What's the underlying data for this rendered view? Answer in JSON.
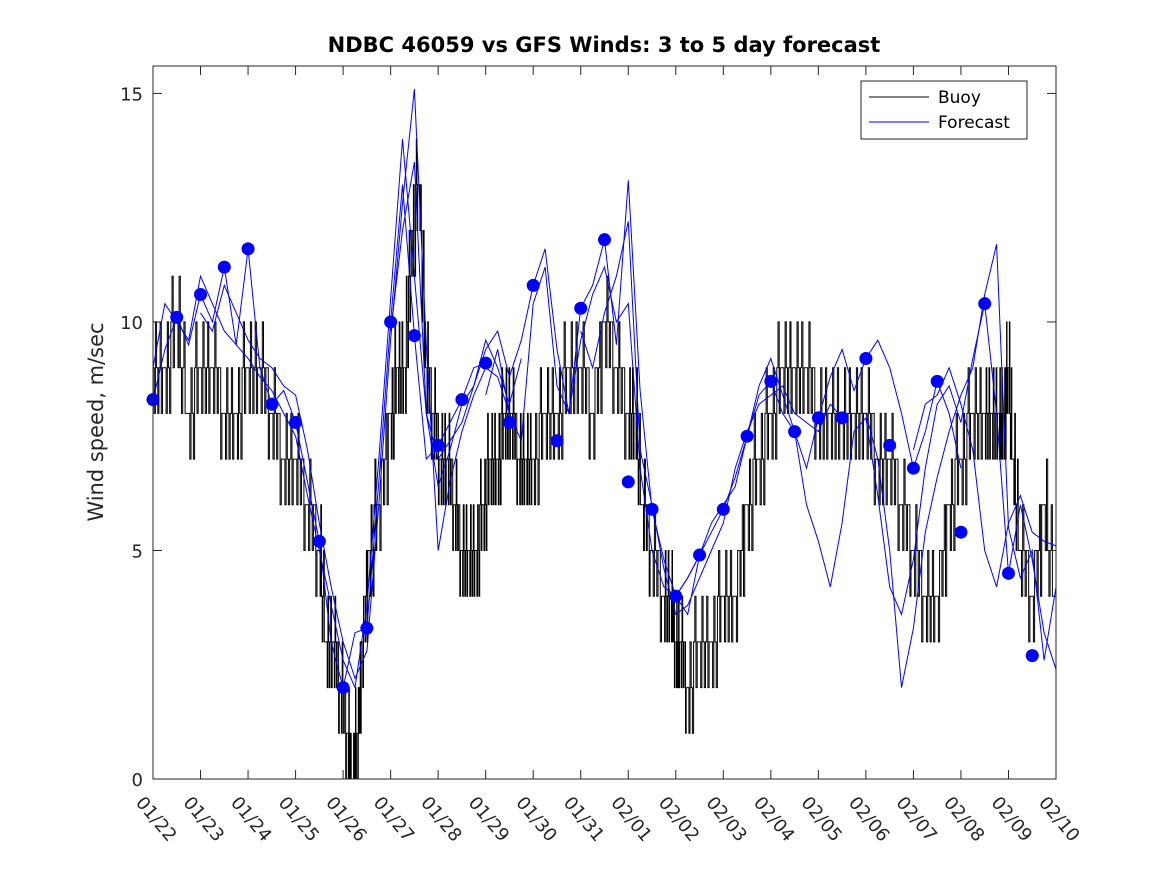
{
  "chart_data": {
    "type": "line",
    "title": "NDBC 46059 vs GFS Winds: 3 to 5 day forecast",
    "xlabel": "",
    "ylabel": "Wind speed, m/sec",
    "xlim": [
      0,
      19
    ],
    "ylim": [
      0,
      15.6
    ],
    "categories": [
      "01/22",
      "01/23",
      "01/24",
      "01/25",
      "01/26",
      "01/27",
      "01/28",
      "01/29",
      "01/30",
      "01/31",
      "02/01",
      "02/02",
      "02/03",
      "02/04",
      "02/05",
      "02/06",
      "02/07",
      "02/08",
      "02/09",
      "02/10"
    ],
    "yticks": [
      0,
      5,
      10,
      15
    ],
    "legend": {
      "position": "top-right",
      "entries": [
        "Buoy",
        "Forecast"
      ]
    },
    "colors": {
      "buoy": "#000000",
      "forecast": "#0000ff",
      "axes": "#262626"
    },
    "series": [
      {
        "name": "Buoy",
        "x": [
          0,
          0.25,
          0.5,
          0.75,
          1.0,
          1.25,
          1.5,
          1.75,
          2.0,
          2.25,
          2.5,
          2.75,
          3.0,
          3.25,
          3.5,
          3.65,
          3.8,
          3.95,
          4.1,
          4.2,
          4.3,
          4.4,
          4.55,
          4.75,
          5.0,
          5.15,
          5.3,
          5.45,
          5.6,
          5.75,
          5.9,
          6.05,
          6.2,
          6.35,
          6.5,
          6.65,
          6.8,
          6.95,
          7.1,
          7.25,
          7.4,
          7.55,
          7.7,
          7.85,
          8.0,
          8.25,
          8.5,
          8.75,
          9.0,
          9.25,
          9.5,
          9.75,
          10.0,
          10.15,
          10.3,
          10.5,
          10.75,
          10.9,
          11.0,
          11.1,
          11.25,
          11.5,
          11.75,
          12.0,
          12.25,
          12.5,
          12.75,
          13.0,
          13.25,
          13.5,
          13.75,
          14.0,
          14.25,
          14.5,
          14.75,
          15.0,
          15.25,
          15.5,
          15.75,
          16.0,
          16.25,
          16.5,
          16.75,
          17.0,
          17.25,
          17.5,
          17.65,
          17.8,
          17.9,
          18.0,
          18.1,
          18.25,
          18.5,
          18.75,
          19.0
        ],
        "values": [
          9,
          9,
          10,
          8,
          9,
          9,
          8,
          8,
          9,
          9,
          8,
          7,
          7,
          6,
          5,
          3,
          3,
          2,
          1,
          0,
          1,
          3,
          5,
          6,
          8,
          9,
          9,
          12,
          13,
          9,
          8,
          7,
          7,
          6,
          5,
          5,
          5,
          6,
          7,
          7,
          8,
          8,
          7,
          7,
          7,
          8,
          8,
          9,
          9,
          8,
          10,
          9,
          8,
          8,
          6,
          5,
          4,
          4,
          3,
          3,
          2,
          3,
          3,
          4,
          4,
          6,
          7,
          8,
          9,
          9,
          9,
          8,
          8,
          8,
          8,
          8,
          7,
          7,
          6,
          5,
          4,
          4,
          6,
          7,
          8,
          8,
          8,
          8,
          8,
          9,
          7,
          5,
          4,
          6,
          4
        ]
      },
      {
        "name": "Forecast",
        "values": [
          8.3,
          10.1,
          10.6,
          11.2,
          11.6,
          8.2,
          7.8,
          5.2,
          2.0,
          3.3,
          10.0,
          9.7,
          7.3,
          8.3,
          9.1,
          7.8,
          10.8,
          7.4,
          10.3,
          11.8,
          6.5,
          5.9,
          4.0,
          4.9,
          5.9,
          7.5,
          8.7,
          7.6,
          7.9,
          7.9,
          9.2,
          7.3,
          6.8,
          8.7,
          5.4,
          10.4,
          4.5,
          2.7
        ],
        "x": [
          0,
          0.5,
          1.0,
          1.5,
          2.0,
          2.5,
          3.0,
          3.5,
          4.0,
          4.5,
          5.0,
          5.5,
          6.0,
          6.5,
          7.0,
          7.5,
          8.0,
          8.5,
          9.0,
          9.5,
          10.0,
          10.5,
          11.0,
          11.5,
          12.0,
          12.5,
          13.0,
          13.5,
          14.0,
          14.5,
          15.0,
          15.5,
          16.0,
          16.5,
          17.0,
          17.5,
          18.0,
          18.5
        ]
      }
    ],
    "forecast_traces": [
      [
        [
          0,
          8.3
        ],
        [
          0.25,
          9.4
        ],
        [
          0.5,
          10.1
        ],
        [
          0.75,
          9.5
        ],
        [
          1.0,
          10.6
        ],
        [
          1.25,
          10.0
        ],
        [
          1.5,
          11.2
        ],
        [
          1.75,
          9.5
        ],
        [
          2.0,
          11.6
        ],
        [
          2.25,
          9.0
        ],
        [
          2.5,
          8.2
        ],
        [
          2.75,
          8.5
        ],
        [
          3.0,
          7.8
        ],
        [
          3.25,
          6.5
        ],
        [
          3.5,
          5.2
        ],
        [
          3.75,
          3.0
        ],
        [
          4.0,
          2.0
        ],
        [
          4.25,
          3.2
        ],
        [
          4.5,
          3.3
        ],
        [
          4.75,
          6.5
        ],
        [
          5.0,
          10.0
        ],
        [
          5.25,
          13.0
        ],
        [
          5.5,
          9.7
        ],
        [
          5.75,
          7.0
        ],
        [
          6.0,
          7.3
        ],
        [
          6.25,
          7.8
        ],
        [
          6.5,
          8.3
        ],
        [
          6.75,
          9.0
        ],
        [
          7.0,
          9.1
        ]
      ],
      [
        [
          0,
          9.0
        ],
        [
          0.25,
          10.4
        ],
        [
          0.5,
          10.0
        ],
        [
          0.75,
          9.6
        ],
        [
          1.0,
          11.0
        ],
        [
          1.25,
          10.4
        ],
        [
          1.5,
          9.8
        ],
        [
          1.75,
          9.5
        ],
        [
          2.0,
          9.2
        ],
        [
          2.25,
          8.8
        ],
        [
          2.5,
          8.5
        ],
        [
          2.75,
          8.0
        ],
        [
          3.0,
          7.5
        ],
        [
          3.25,
          6.2
        ],
        [
          3.5,
          5.0
        ],
        [
          3.75,
          3.8
        ],
        [
          4.0,
          2.6
        ],
        [
          4.25,
          2.0
        ],
        [
          4.5,
          3.8
        ],
        [
          4.75,
          7.0
        ],
        [
          5.0,
          10.5
        ],
        [
          5.25,
          14.0
        ],
        [
          5.5,
          11.0
        ],
        [
          5.75,
          8.0
        ],
        [
          6.0,
          7.0
        ],
        [
          6.25,
          7.4
        ],
        [
          6.5,
          7.8
        ],
        [
          6.75,
          8.6
        ],
        [
          7.0,
          9.6
        ],
        [
          7.25,
          9.0
        ],
        [
          7.5,
          8.2
        ],
        [
          7.75,
          9.2
        ]
      ],
      [
        [
          1.0,
          10.2
        ],
        [
          1.25,
          9.8
        ],
        [
          1.5,
          10.8
        ],
        [
          1.75,
          10.2
        ],
        [
          2.0,
          9.6
        ],
        [
          2.25,
          9.2
        ],
        [
          2.5,
          9.0
        ],
        [
          2.75,
          8.6
        ],
        [
          3.0,
          8.4
        ],
        [
          3.25,
          7.2
        ],
        [
          3.5,
          5.6
        ],
        [
          3.75,
          4.2
        ],
        [
          4.0,
          3.0
        ],
        [
          4.25,
          2.2
        ],
        [
          4.5,
          2.8
        ],
        [
          4.75,
          6.0
        ],
        [
          5.0,
          9.6
        ],
        [
          5.25,
          12.6
        ],
        [
          5.5,
          15.1
        ],
        [
          5.75,
          9.5
        ],
        [
          6.0,
          5.0
        ],
        [
          6.25,
          6.5
        ],
        [
          6.5,
          7.6
        ],
        [
          6.75,
          8.4
        ],
        [
          7.0,
          9.0
        ],
        [
          7.25,
          8.8
        ],
        [
          7.5,
          8.0
        ]
      ],
      [
        [
          5.0,
          9.8
        ],
        [
          5.25,
          12.0
        ],
        [
          5.5,
          13.5
        ],
        [
          5.75,
          8.0
        ],
        [
          6.0,
          6.4
        ],
        [
          6.25,
          7.2
        ],
        [
          6.5,
          8.2
        ],
        [
          6.75,
          8.6
        ],
        [
          7.0,
          9.4
        ],
        [
          7.25,
          9.8
        ],
        [
          7.5,
          8.8
        ],
        [
          7.75,
          9.6
        ],
        [
          8.0,
          10.8
        ],
        [
          8.25,
          11.6
        ],
        [
          8.5,
          9.4
        ],
        [
          8.75,
          8.0
        ],
        [
          9.0,
          10.3
        ],
        [
          9.25,
          10.8
        ],
        [
          9.5,
          11.8
        ],
        [
          9.75,
          9.5
        ],
        [
          10.0,
          13.1
        ],
        [
          10.25,
          8.5
        ],
        [
          10.5,
          5.9
        ],
        [
          10.75,
          4.8
        ],
        [
          11.0,
          4.0
        ],
        [
          11.25,
          3.6
        ],
        [
          11.5,
          4.9
        ]
      ],
      [
        [
          7.0,
          8.4
        ],
        [
          7.25,
          9.4
        ],
        [
          7.5,
          8.0
        ],
        [
          7.75,
          7.4
        ],
        [
          8.0,
          10.4
        ],
        [
          8.25,
          11.2
        ],
        [
          8.5,
          8.6
        ],
        [
          8.75,
          8.0
        ],
        [
          9.0,
          9.6
        ],
        [
          9.25,
          10.6
        ],
        [
          9.5,
          11.2
        ],
        [
          9.75,
          10.0
        ],
        [
          10.0,
          10.4
        ],
        [
          10.25,
          6.8
        ],
        [
          10.5,
          5.0
        ],
        [
          10.75,
          4.2
        ],
        [
          11.0,
          4.0
        ],
        [
          11.25,
          4.4
        ],
        [
          11.5,
          4.9
        ],
        [
          11.75,
          5.4
        ],
        [
          12.0,
          5.9
        ],
        [
          12.25,
          6.6
        ],
        [
          12.5,
          7.5
        ],
        [
          12.75,
          8.4
        ],
        [
          13.0,
          8.7
        ]
      ],
      [
        [
          9.0,
          9.8
        ],
        [
          9.25,
          9.0
        ],
        [
          9.5,
          10.2
        ],
        [
          9.75,
          11.0
        ],
        [
          10.0,
          12.2
        ],
        [
          10.25,
          7.2
        ],
        [
          10.5,
          6.0
        ],
        [
          10.75,
          4.6
        ],
        [
          11.0,
          3.6
        ],
        [
          11.25,
          3.8
        ],
        [
          11.5,
          4.4
        ],
        [
          11.75,
          5.0
        ],
        [
          12.0,
          5.6
        ],
        [
          12.25,
          6.8
        ],
        [
          12.5,
          7.6
        ],
        [
          12.75,
          8.2
        ],
        [
          13.0,
          8.4
        ],
        [
          13.25,
          8.6
        ],
        [
          13.5,
          8.0
        ],
        [
          13.75,
          7.8
        ],
        [
          14.0,
          7.6
        ],
        [
          14.25,
          8.2
        ],
        [
          14.5,
          7.9
        ]
      ],
      [
        [
          11.0,
          4.0
        ],
        [
          11.25,
          4.4
        ],
        [
          11.5,
          4.9
        ],
        [
          11.75,
          5.6
        ],
        [
          12.0,
          6.0
        ],
        [
          12.25,
          6.4
        ],
        [
          12.5,
          7.5
        ],
        [
          12.75,
          8.6
        ],
        [
          13.0,
          9.2
        ],
        [
          13.25,
          8.4
        ],
        [
          13.5,
          7.6
        ],
        [
          13.75,
          6.8
        ],
        [
          14.0,
          7.9
        ],
        [
          14.25,
          8.8
        ],
        [
          14.5,
          9.4
        ],
        [
          14.75,
          8.5
        ],
        [
          15.0,
          9.2
        ],
        [
          15.25,
          9.6
        ],
        [
          15.5,
          9.0
        ],
        [
          15.75,
          8.0
        ],
        [
          16.0,
          6.8
        ],
        [
          16.25,
          7.6
        ],
        [
          16.5,
          8.7
        ],
        [
          16.75,
          8.0
        ],
        [
          17.0,
          6.8
        ]
      ],
      [
        [
          13.0,
          8.7
        ],
        [
          13.25,
          8.0
        ],
        [
          13.5,
          7.6
        ],
        [
          13.75,
          6.0
        ],
        [
          14.0,
          5.2
        ],
        [
          14.25,
          4.2
        ],
        [
          14.5,
          5.6
        ],
        [
          14.75,
          7.6
        ],
        [
          15.0,
          7.9
        ],
        [
          15.25,
          6.2
        ],
        [
          15.5,
          4.2
        ],
        [
          15.75,
          3.6
        ],
        [
          16.0,
          4.8
        ],
        [
          16.25,
          6.8
        ],
        [
          16.5,
          8.2
        ],
        [
          16.75,
          8.6
        ],
        [
          17.0,
          7.8
        ],
        [
          17.25,
          9.2
        ],
        [
          17.5,
          10.4
        ],
        [
          17.75,
          8.0
        ],
        [
          18.0,
          4.5
        ],
        [
          18.25,
          6.0
        ],
        [
          18.5,
          4.8
        ],
        [
          18.75,
          3.2
        ],
        [
          19.0,
          2.4
        ]
      ],
      [
        [
          15.0,
          8.0
        ],
        [
          15.25,
          7.0
        ],
        [
          15.5,
          5.0
        ],
        [
          15.75,
          2.0
        ],
        [
          16.0,
          3.3
        ],
        [
          16.25,
          5.4
        ],
        [
          16.5,
          6.6
        ],
        [
          16.75,
          7.6
        ],
        [
          17.0,
          8.4
        ],
        [
          17.25,
          9.0
        ],
        [
          17.5,
          10.6
        ],
        [
          17.75,
          11.7
        ],
        [
          18.0,
          5.5
        ],
        [
          18.25,
          4.4
        ],
        [
          18.5,
          5.0
        ],
        [
          18.75,
          2.6
        ],
        [
          19.0,
          4.2
        ]
      ],
      [
        [
          16.0,
          7.2
        ],
        [
          16.25,
          8.2
        ],
        [
          16.5,
          8.4
        ],
        [
          16.75,
          9.0
        ],
        [
          17.0,
          8.2
        ],
        [
          17.25,
          7.2
        ],
        [
          17.5,
          5.0
        ],
        [
          17.75,
          4.2
        ],
        [
          18.0,
          5.6
        ],
        [
          18.25,
          6.2
        ],
        [
          18.5,
          5.4
        ],
        [
          18.75,
          5.2
        ],
        [
          19.0,
          5.1
        ]
      ]
    ]
  }
}
